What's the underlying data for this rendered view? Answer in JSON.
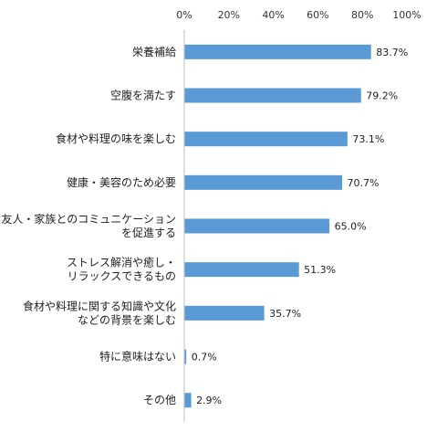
{
  "chart_data": {
    "type": "bar",
    "orientation": "horizontal",
    "categories": [
      [
        "栄養補給"
      ],
      [
        "空腹を満たす"
      ],
      [
        "食材や料理の味を楽しむ"
      ],
      [
        "健康・美容のため必要"
      ],
      [
        "友人・家族とのコミュニケーション",
        "を促進する"
      ],
      [
        "ストレス解消や癒し・",
        "リラックスできるもの"
      ],
      [
        "食材や料理に関する知識や文化",
        "などの背景を楽しむ"
      ],
      [
        "特に意味はない"
      ],
      [
        "その他"
      ]
    ],
    "values": [
      83.7,
      79.2,
      73.1,
      70.7,
      65.0,
      51.3,
      35.7,
      0.7,
      2.9
    ],
    "value_labels": [
      "83.7%",
      "79.2%",
      "73.1%",
      "70.7%",
      "65.0%",
      "51.3%",
      "35.7%",
      "0.7%",
      "2.9%"
    ],
    "xlim": [
      0,
      100
    ],
    "x_ticks": [
      "0%",
      "20%",
      "40%",
      "60%",
      "80%",
      "100%"
    ],
    "x_tick_values": [
      0,
      20,
      40,
      60,
      80,
      100
    ],
    "axis_position": "top",
    "grid": false,
    "bar_color": "#5b9bd5",
    "title": "",
    "xlabel": "",
    "ylabel": ""
  }
}
